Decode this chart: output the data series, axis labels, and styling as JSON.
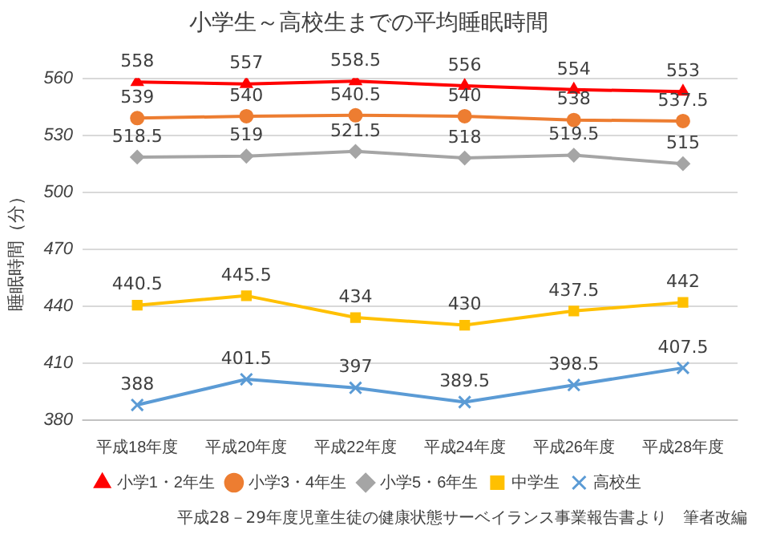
{
  "chart_data": {
    "type": "line",
    "title": "小学生～高校生までの平均睡眠時間",
    "ylabel": "睡眠時間（分）",
    "categories": [
      "平成18年度",
      "平成20年度",
      "平成22年度",
      "平成24年度",
      "平成26年度",
      "平成28年度"
    ],
    "series": [
      {
        "name": "小学1・2年生",
        "color": "#ff0000",
        "marker": "triangle",
        "values": [
          558,
          557,
          558.5,
          556,
          554,
          553
        ]
      },
      {
        "name": "小学3・4年生",
        "color": "#ed7d31",
        "marker": "circle",
        "values": [
          539,
          540,
          540.5,
          540,
          538,
          537.5
        ]
      },
      {
        "name": "小学5・6年生",
        "color": "#a5a5a5",
        "marker": "diamond",
        "values": [
          518.5,
          519,
          521.5,
          518,
          519.5,
          515
        ]
      },
      {
        "name": "中学生",
        "color": "#ffc000",
        "marker": "square",
        "values": [
          440.5,
          445.5,
          434,
          430,
          437.5,
          442
        ]
      },
      {
        "name": "高校生",
        "color": "#5b9bd5",
        "marker": "cross",
        "values": [
          388,
          401.5,
          397,
          389.5,
          398.5,
          407.5
        ]
      }
    ],
    "ylim": [
      380,
      560
    ],
    "yticks": [
      380,
      410,
      440,
      470,
      500,
      530,
      560
    ],
    "grid": "y",
    "legend": "bottom",
    "data_labels": true,
    "annotations": [
      "平成28－29年度児童生徒の健康状態サーベイランス事業報告書より　筆者改編"
    ]
  }
}
